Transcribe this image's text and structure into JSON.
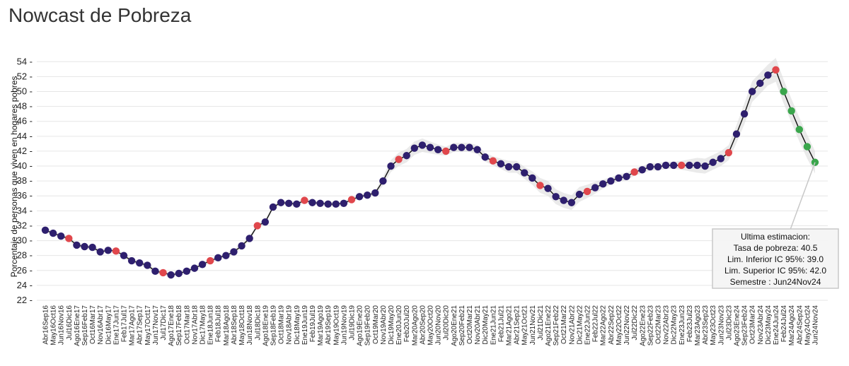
{
  "page": {
    "title": "Nowcast de Pobreza"
  },
  "chart_data": {
    "type": "line",
    "title": "Nowcast de Pobreza",
    "ylabel": "Porcentaje de personas que viven en hogares pobres",
    "xlabel": "",
    "ylim": [
      22,
      54.5
    ],
    "yticks": [
      22,
      24,
      26,
      28,
      30,
      32,
      34,
      36,
      38,
      40,
      42,
      44,
      46,
      48,
      50,
      52,
      54
    ],
    "grid": true,
    "colors": {
      "line": "#111111",
      "band": "#d9d9d9",
      "estimate": "#2e1f6e",
      "official": "#e0474c",
      "forecast": "#3aa64c"
    },
    "categories": [
      "Abr16Sep16",
      "May16Oct16",
      "Jun16Nov16",
      "Jul16Dic16",
      "Ago16Ene17",
      "Sep16Feb17",
      "Oct16Mar17",
      "Nov16Abr17",
      "Dic16May17",
      "Ene17Jun17",
      "Feb17Jul17",
      "Mar17Ago17",
      "Abr17Sep17",
      "May17Oct17",
      "Jun17Nov17",
      "Jul17Dic17",
      "Ago17Ene18",
      "Sep17Feb18",
      "Oct17Mar18",
      "Nov17Abr18",
      "Dic17May18",
      "Ene18Jun18",
      "Feb18Jul18",
      "Mar18Ago18",
      "Abr18Sep18",
      "May18Oct18",
      "Jun18Nov18",
      "Jul18Dic18",
      "Ago18Ene19",
      "Sep18Feb19",
      "Oct18Mar19",
      "Nov18Abr19",
      "Dic18May19",
      "Ene19Jun19",
      "Feb19Jul19",
      "Mar19Ago19",
      "Abr19Sep19",
      "May19Oct19",
      "Jun19Nov19",
      "Jul19Dic19",
      "Ago19Ene20",
      "Sep19Feb20",
      "Oct19Mar20",
      "Nov19Abr20",
      "Dic19May20",
      "Ene20Jun20",
      "Feb20Jul20",
      "Mar20Ago20",
      "Abr20Sep20",
      "May20Oct20",
      "Jun20Nov20",
      "Jul20Dic20",
      "Ago20Ene21",
      "Sep20Feb21",
      "Oct20Mar21",
      "Nov20Abr21",
      "Dic20May21",
      "Ene21Jun21",
      "Feb21Jul21",
      "Mar21Ago21",
      "Abr21Sep21",
      "May21Oct21",
      "Jun21Nov21",
      "Jul21Dic21",
      "Ago21Ene22",
      "Sep21Feb22",
      "Oct21Mar22",
      "Nov21Abr22",
      "Dic21May22",
      "Ene22Jun22",
      "Feb22Jul22",
      "Mar22Ago22",
      "Abr22Sep22",
      "May22Oct22",
      "Jun22Nov22",
      "Jul22Dic22",
      "Ago22Ene23",
      "Sep22Feb23",
      "Oct22Mar23",
      "Nov22Abr23",
      "Dic22May23",
      "Ene23Jun23",
      "Feb23Jul23",
      "Mar23Ago23",
      "Abr23Sep23",
      "May23Oct23",
      "Jun23Nov23",
      "Jul23Dic23",
      "Ago23Ene24",
      "Sep23Feb24",
      "Oct23Mar24",
      "Nov23Abr24",
      "Dic23May24",
      "Ene24Jun24",
      "Feb24Jul24",
      "Mar24Ago24",
      "Abr24Sep24",
      "May24Oct24",
      "Jun24Nov24"
    ],
    "series": [
      {
        "values": [
          31.4,
          31.0,
          30.6,
          30.3,
          29.4,
          29.2,
          29.1,
          28.5,
          28.7,
          28.6,
          28.0,
          27.3,
          27.0,
          26.7,
          25.9,
          25.7,
          25.4,
          25.6,
          25.9,
          26.3,
          26.8,
          27.3,
          27.7,
          28.0,
          28.5,
          29.3,
          30.3,
          32.0,
          32.5,
          34.5,
          35.1,
          35.0,
          34.9,
          35.4,
          35.1,
          35.0,
          34.9,
          34.9,
          35.0,
          35.5,
          35.9,
          36.1,
          36.4,
          38.0,
          40.0,
          40.9,
          41.4,
          42.4,
          42.8,
          42.5,
          42.2,
          42.0,
          42.5,
          42.5,
          42.5,
          42.2,
          41.2,
          40.7,
          40.3,
          39.9,
          39.9,
          39.1,
          38.4,
          37.4,
          37.0,
          35.9,
          35.4,
          35.1,
          36.2,
          36.6,
          37.1,
          37.6,
          38.0,
          38.4,
          38.6,
          39.2,
          39.5,
          39.9,
          39.9,
          40.1,
          40.1,
          40.1,
          40.1,
          40.1,
          40.0,
          40.5,
          41.0,
          41.8,
          44.3,
          47.0,
          50.0,
          51.1,
          52.2,
          52.9,
          50.0,
          47.4,
          44.9,
          42.6,
          40.5
        ],
        "band": [
          0.3,
          0.3,
          0.3,
          0.3,
          0.3,
          0.3,
          0.3,
          0.3,
          0.3,
          0.3,
          0.3,
          0.3,
          0.3,
          0.3,
          0.3,
          0.3,
          0.3,
          0.3,
          0.3,
          0.3,
          0.3,
          0.3,
          0.3,
          0.3,
          0.3,
          0.3,
          0.3,
          0.3,
          0.3,
          0.3,
          0.3,
          0.3,
          0.3,
          0.3,
          0.3,
          0.3,
          0.3,
          0.3,
          0.3,
          0.3,
          0.3,
          0.3,
          0.3,
          0.6,
          0.8,
          0.9,
          0.9,
          0.9,
          0.9,
          0.8,
          0.7,
          0.6,
          0.6,
          0.6,
          0.6,
          0.6,
          0.6,
          0.6,
          0.7,
          0.8,
          0.8,
          0.8,
          0.9,
          1.0,
          1.0,
          1.0,
          1.0,
          1.0,
          1.0,
          0.9,
          0.8,
          0.6,
          0.5,
          0.5,
          0.5,
          0.5,
          0.5,
          0.5,
          0.5,
          0.5,
          0.5,
          0.6,
          0.8,
          1.0,
          1.0,
          1.0,
          1.0,
          1.0,
          1.2,
          1.4,
          1.4,
          1.4,
          1.4,
          1.6,
          1.6,
          1.6,
          1.6,
          1.6,
          1.5
        ],
        "kind": [
          "e",
          "e",
          "e",
          "o",
          "e",
          "e",
          "e",
          "e",
          "e",
          "o",
          "e",
          "e",
          "e",
          "e",
          "e",
          "o",
          "e",
          "e",
          "e",
          "e",
          "e",
          "o",
          "e",
          "e",
          "e",
          "e",
          "e",
          "o",
          "e",
          "e",
          "e",
          "e",
          "e",
          "o",
          "e",
          "e",
          "e",
          "e",
          "e",
          "o",
          "e",
          "e",
          "e",
          "e",
          "e",
          "o",
          "e",
          "e",
          "e",
          "e",
          "e",
          "o",
          "e",
          "e",
          "e",
          "e",
          "e",
          "o",
          "e",
          "e",
          "e",
          "e",
          "e",
          "o",
          "e",
          "e",
          "e",
          "e",
          "e",
          "o",
          "e",
          "e",
          "e",
          "e",
          "e",
          "o",
          "e",
          "e",
          "e",
          "e",
          "e",
          "o",
          "e",
          "e",
          "e",
          "e",
          "e",
          "o",
          "e",
          "e",
          "e",
          "e",
          "e",
          "o",
          "f",
          "f",
          "f",
          "f",
          "f"
        ]
      }
    ],
    "annotation": {
      "title": "Ultima estimacion:",
      "lines": [
        "Tasa de pobreza:  40.5",
        "Lim. Inferior IC 95%:  39.0",
        "Lim. Superior IC 95%:  42.0",
        "Semestre : Jun24Nov24"
      ]
    }
  }
}
